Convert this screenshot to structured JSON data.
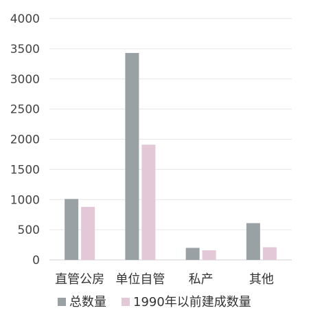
{
  "chart_data": {
    "type": "bar",
    "categories": [
      "直管公房",
      "单位自管",
      "私产",
      "其他"
    ],
    "series": [
      {
        "name": "总数量",
        "values": [
          1010,
          3430,
          200,
          610
        ],
        "color": "#9aa1a5"
      },
      {
        "name": "1990年以前建成数量",
        "values": [
          880,
          1910,
          160,
          210
        ],
        "color": "#e3c8d8"
      }
    ],
    "ylim": [
      0,
      4000
    ],
    "yticks": [
      0,
      500,
      1000,
      1500,
      2000,
      2500,
      3000,
      3500,
      4000
    ],
    "grid": true,
    "legend_position": "bottom"
  }
}
